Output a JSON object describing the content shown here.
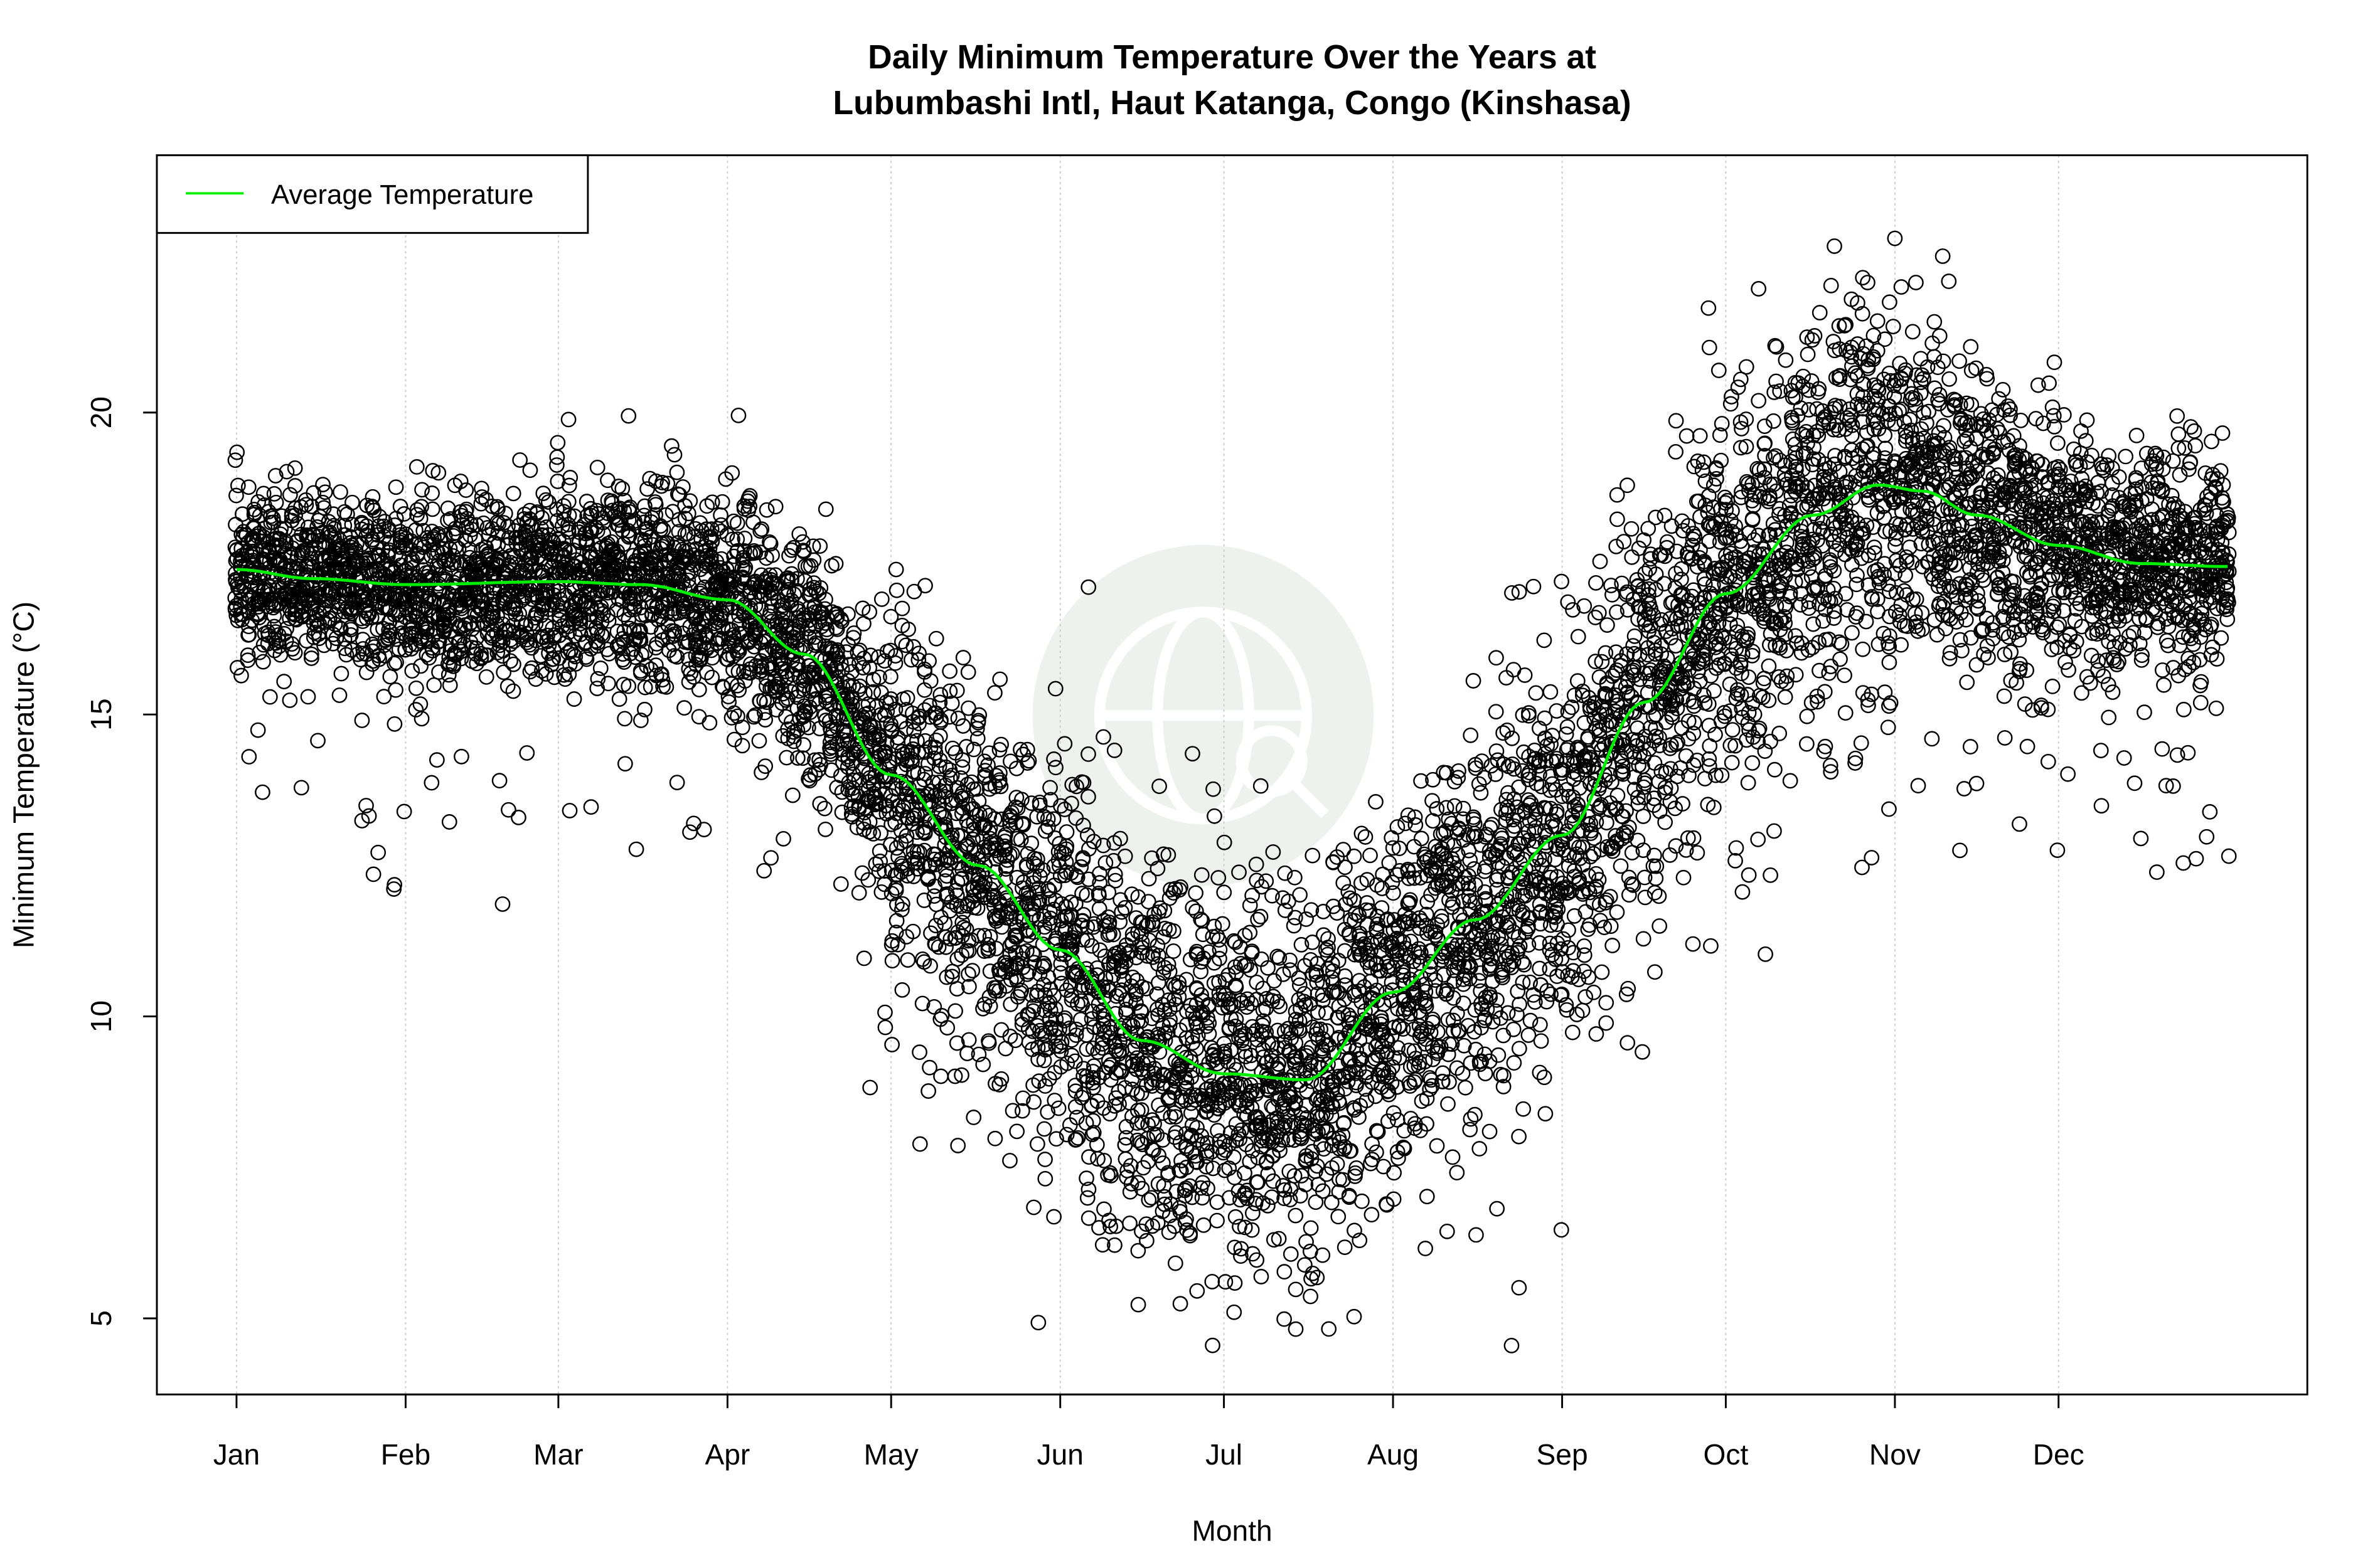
{
  "chart_data": {
    "type": "scatter",
    "title_line1": "Daily Minimum Temperature Over the Years at",
    "title_line2": "Lubumbashi Intl, Haut Katanga, Congo (Kinshasa)",
    "xlabel": "Month",
    "ylabel": "Minimum Temperature (°C)",
    "x_unit": "day of year",
    "xlim": [
      -13.6,
      380.6
    ],
    "ylim": [
      3.74,
      24.26
    ],
    "x_ticks": [
      {
        "day": 1,
        "label": "Jan"
      },
      {
        "day": 32,
        "label": "Feb"
      },
      {
        "day": 60,
        "label": "Mar"
      },
      {
        "day": 91,
        "label": "Apr"
      },
      {
        "day": 121,
        "label": "May"
      },
      {
        "day": 152,
        "label": "Jun"
      },
      {
        "day": 182,
        "label": "Jul"
      },
      {
        "day": 213,
        "label": "Aug"
      },
      {
        "day": 244,
        "label": "Sep"
      },
      {
        "day": 274,
        "label": "Oct"
      },
      {
        "day": 305,
        "label": "Nov"
      },
      {
        "day": 335,
        "label": "Dec"
      }
    ],
    "y_ticks": [
      5,
      10,
      15,
      20
    ],
    "grid": "vertical dotted at month starts",
    "legend": {
      "placement": "top-left",
      "entries": [
        {
          "label": "Average Temperature",
          "color": "#00ee00"
        }
      ]
    },
    "series": [
      {
        "name": "Average Temperature",
        "type": "line",
        "color": "#00ee00",
        "x": [
          1,
          15,
          32,
          60,
          75,
          91,
          105,
          121,
          137,
          152,
          167,
          182,
          197,
          213,
          228,
          244,
          259,
          274,
          290,
          302,
          310,
          320,
          335,
          350,
          366
        ],
        "y": [
          17.4,
          17.25,
          17.15,
          17.2,
          17.15,
          16.9,
          16.0,
          14.0,
          12.5,
          11.1,
          9.6,
          9.05,
          8.95,
          10.4,
          11.6,
          13.0,
          15.2,
          17.0,
          18.3,
          18.8,
          18.7,
          18.3,
          17.8,
          17.5,
          17.45
        ]
      },
      {
        "name": "",
        "type": "scatter",
        "marker": "open circle",
        "color": "#000000",
        "approx_spread_by_month_sd": [
          0.7,
          0.75,
          0.8,
          1.0,
          1.5,
          1.7,
          1.6,
          1.5,
          1.5,
          1.5,
          1.3,
          0.9
        ]
      }
    ],
    "watermark_color": "#eef2ee"
  }
}
